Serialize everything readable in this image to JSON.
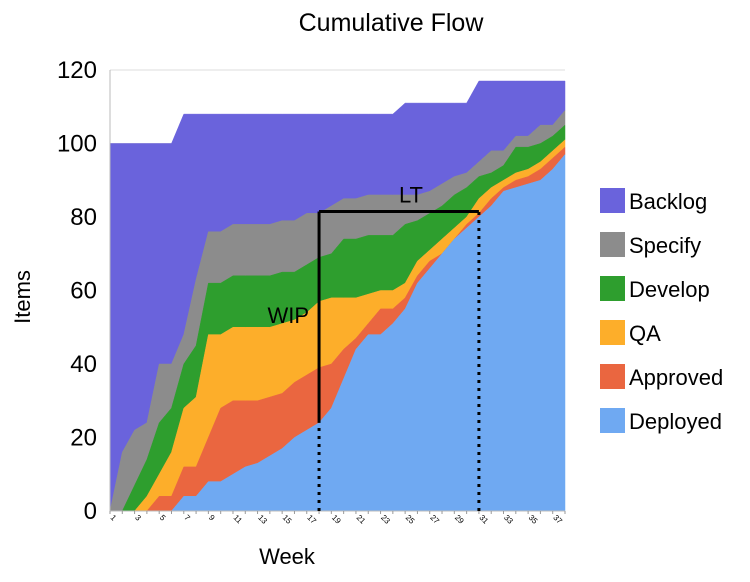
{
  "chart_data": {
    "type": "area",
    "stacked": true,
    "title": "Cumulative Flow",
    "xlabel": "Week",
    "ylabel": "Items",
    "ylim": [
      0,
      120
    ],
    "yticks": [
      0,
      20,
      40,
      60,
      80,
      100,
      120
    ],
    "xticks": [
      1,
      3,
      5,
      7,
      9,
      11,
      13,
      15,
      17,
      19,
      21,
      23,
      25,
      27,
      29,
      31,
      33,
      35,
      37
    ],
    "xlim": [
      1,
      38
    ],
    "grid": true,
    "legend_position": "right",
    "x": [
      1,
      2,
      3,
      4,
      5,
      6,
      7,
      8,
      9,
      10,
      11,
      12,
      13,
      14,
      15,
      16,
      17,
      18,
      19,
      20,
      21,
      22,
      23,
      24,
      25,
      26,
      27,
      28,
      29,
      30,
      31,
      32,
      33,
      34,
      35,
      36,
      37,
      38
    ],
    "series": [
      {
        "name": "Backlog",
        "color": "#6a63dc",
        "cumulative": [
          100,
          100,
          100,
          100,
          100,
          100,
          108,
          108,
          108,
          108,
          108,
          108,
          108,
          108,
          108,
          108,
          108,
          108,
          108,
          108,
          108,
          108,
          108,
          108,
          111,
          111,
          111,
          111,
          111,
          111,
          117,
          117,
          117,
          117,
          117,
          117,
          117,
          117
        ]
      },
      {
        "name": "Specify",
        "color": "#8c8c8c",
        "cumulative": [
          0,
          16,
          22,
          24,
          40,
          40,
          48,
          63,
          76,
          76,
          78,
          78,
          78,
          78,
          79,
          79,
          81,
          81,
          83,
          85,
          85,
          86,
          86,
          86,
          86,
          86,
          87,
          89,
          91,
          92,
          95,
          98,
          98,
          102,
          102,
          105,
          105,
          109
        ]
      },
      {
        "name": "Develop",
        "color": "#2e9e2e",
        "cumulative": [
          0,
          0,
          7,
          14,
          24,
          28,
          40,
          45,
          62,
          62,
          64,
          64,
          64,
          64,
          65,
          65,
          67,
          69,
          70,
          74,
          74,
          75,
          75,
          75,
          78,
          79,
          81,
          83,
          86,
          88,
          91,
          92,
          94,
          99,
          99,
          100,
          102,
          105
        ]
      },
      {
        "name": "QA",
        "color": "#fdae2a",
        "cumulative": [
          0,
          0,
          0,
          4,
          10,
          16,
          28,
          31,
          48,
          48,
          50,
          50,
          50,
          50,
          51,
          52,
          54,
          57,
          58,
          58,
          58,
          59,
          60,
          60,
          62,
          68,
          71,
          74,
          77,
          80,
          85,
          88,
          90,
          92,
          93,
          95,
          98,
          101
        ]
      },
      {
        "name": "Approved",
        "color": "#ea6640",
        "cumulative": [
          0,
          0,
          0,
          0,
          4,
          4,
          12,
          12,
          20,
          28,
          30,
          30,
          30,
          31,
          32,
          35,
          37,
          39,
          40,
          44,
          47,
          51,
          55,
          55,
          58,
          64,
          68,
          70,
          74,
          78,
          81,
          85,
          88,
          90,
          91,
          93,
          96,
          99
        ]
      },
      {
        "name": "Deployed",
        "color": "#6fa9f2",
        "cumulative": [
          0,
          0,
          0,
          0,
          0,
          0,
          4,
          4,
          8,
          8,
          10,
          12,
          13,
          15,
          17,
          20,
          22,
          24,
          28,
          36,
          44,
          48,
          48,
          51,
          55,
          62,
          66,
          70,
          74,
          77,
          80,
          83,
          87,
          88,
          89,
          90,
          93,
          97
        ]
      }
    ],
    "annotations": [
      {
        "label": "WIP",
        "type": "vertical-line",
        "x": 18,
        "y_from": 24,
        "y_to": 81.5
      },
      {
        "label": "LT",
        "type": "horizontal-line",
        "y": 81.5,
        "x_from": 18,
        "x_to": 31
      },
      {
        "type": "dotted-drop",
        "x": 18,
        "y_from": 0,
        "y_to": 24
      },
      {
        "type": "dotted-drop",
        "x": 31,
        "y_from": 0,
        "y_to": 81.5
      }
    ]
  }
}
